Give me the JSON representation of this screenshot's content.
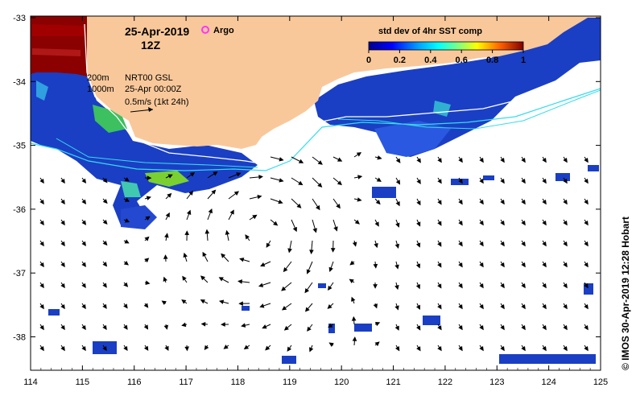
{
  "title": {
    "date": "25-Apr-2019",
    "time": "12Z",
    "argo_label": "Argo"
  },
  "colorbar": {
    "label": "std dev of 4hr SST comp",
    "ticks": [
      "0",
      "0.2",
      "0.4",
      "0.6",
      "0.8",
      "1"
    ]
  },
  "info": {
    "contour1": "200m",
    "contour2": "1000m",
    "product": "NRT00 GSL",
    "valid": "25-Apr 00:00Z",
    "scale": "0.5m/s (1kt 24h)"
  },
  "axes": {
    "x_ticks": [
      "114",
      "115",
      "116",
      "117",
      "118",
      "119",
      "120",
      "121",
      "122",
      "123",
      "124",
      "125"
    ],
    "y_ticks": [
      "-33",
      "-34",
      "-35",
      "-36",
      "-37",
      "-38"
    ]
  },
  "credit": "© IMOS 30-Apr-2019 12:28 Hobart",
  "colors": {
    "land": "#f9c89a",
    "ocean": "#ffffff",
    "contour_200m": "#ffffff",
    "contour_1000m": "#33ddee",
    "argo": "#ff33ff"
  }
}
